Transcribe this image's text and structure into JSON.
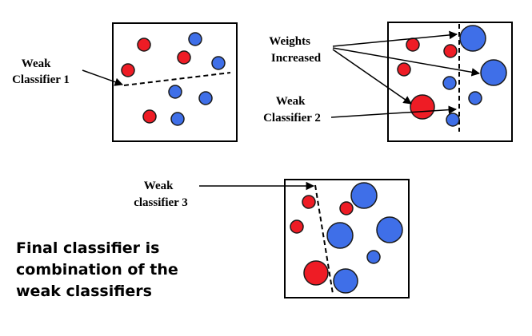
{
  "labels": {
    "weak1": [
      "Weak",
      "Classifier 1"
    ],
    "weights": [
      "Weights",
      "Increased"
    ],
    "weak2": [
      "Weak",
      "Classifier 2"
    ],
    "weak3": [
      "Weak",
      "classifier 3"
    ]
  },
  "final_text": [
    "Final classifier is",
    "combination of the",
    "weak classifiers"
  ],
  "colors": {
    "red": "#ee1c25",
    "blue": "#3f6fe8",
    "stroke": "#1a1a1a"
  }
}
